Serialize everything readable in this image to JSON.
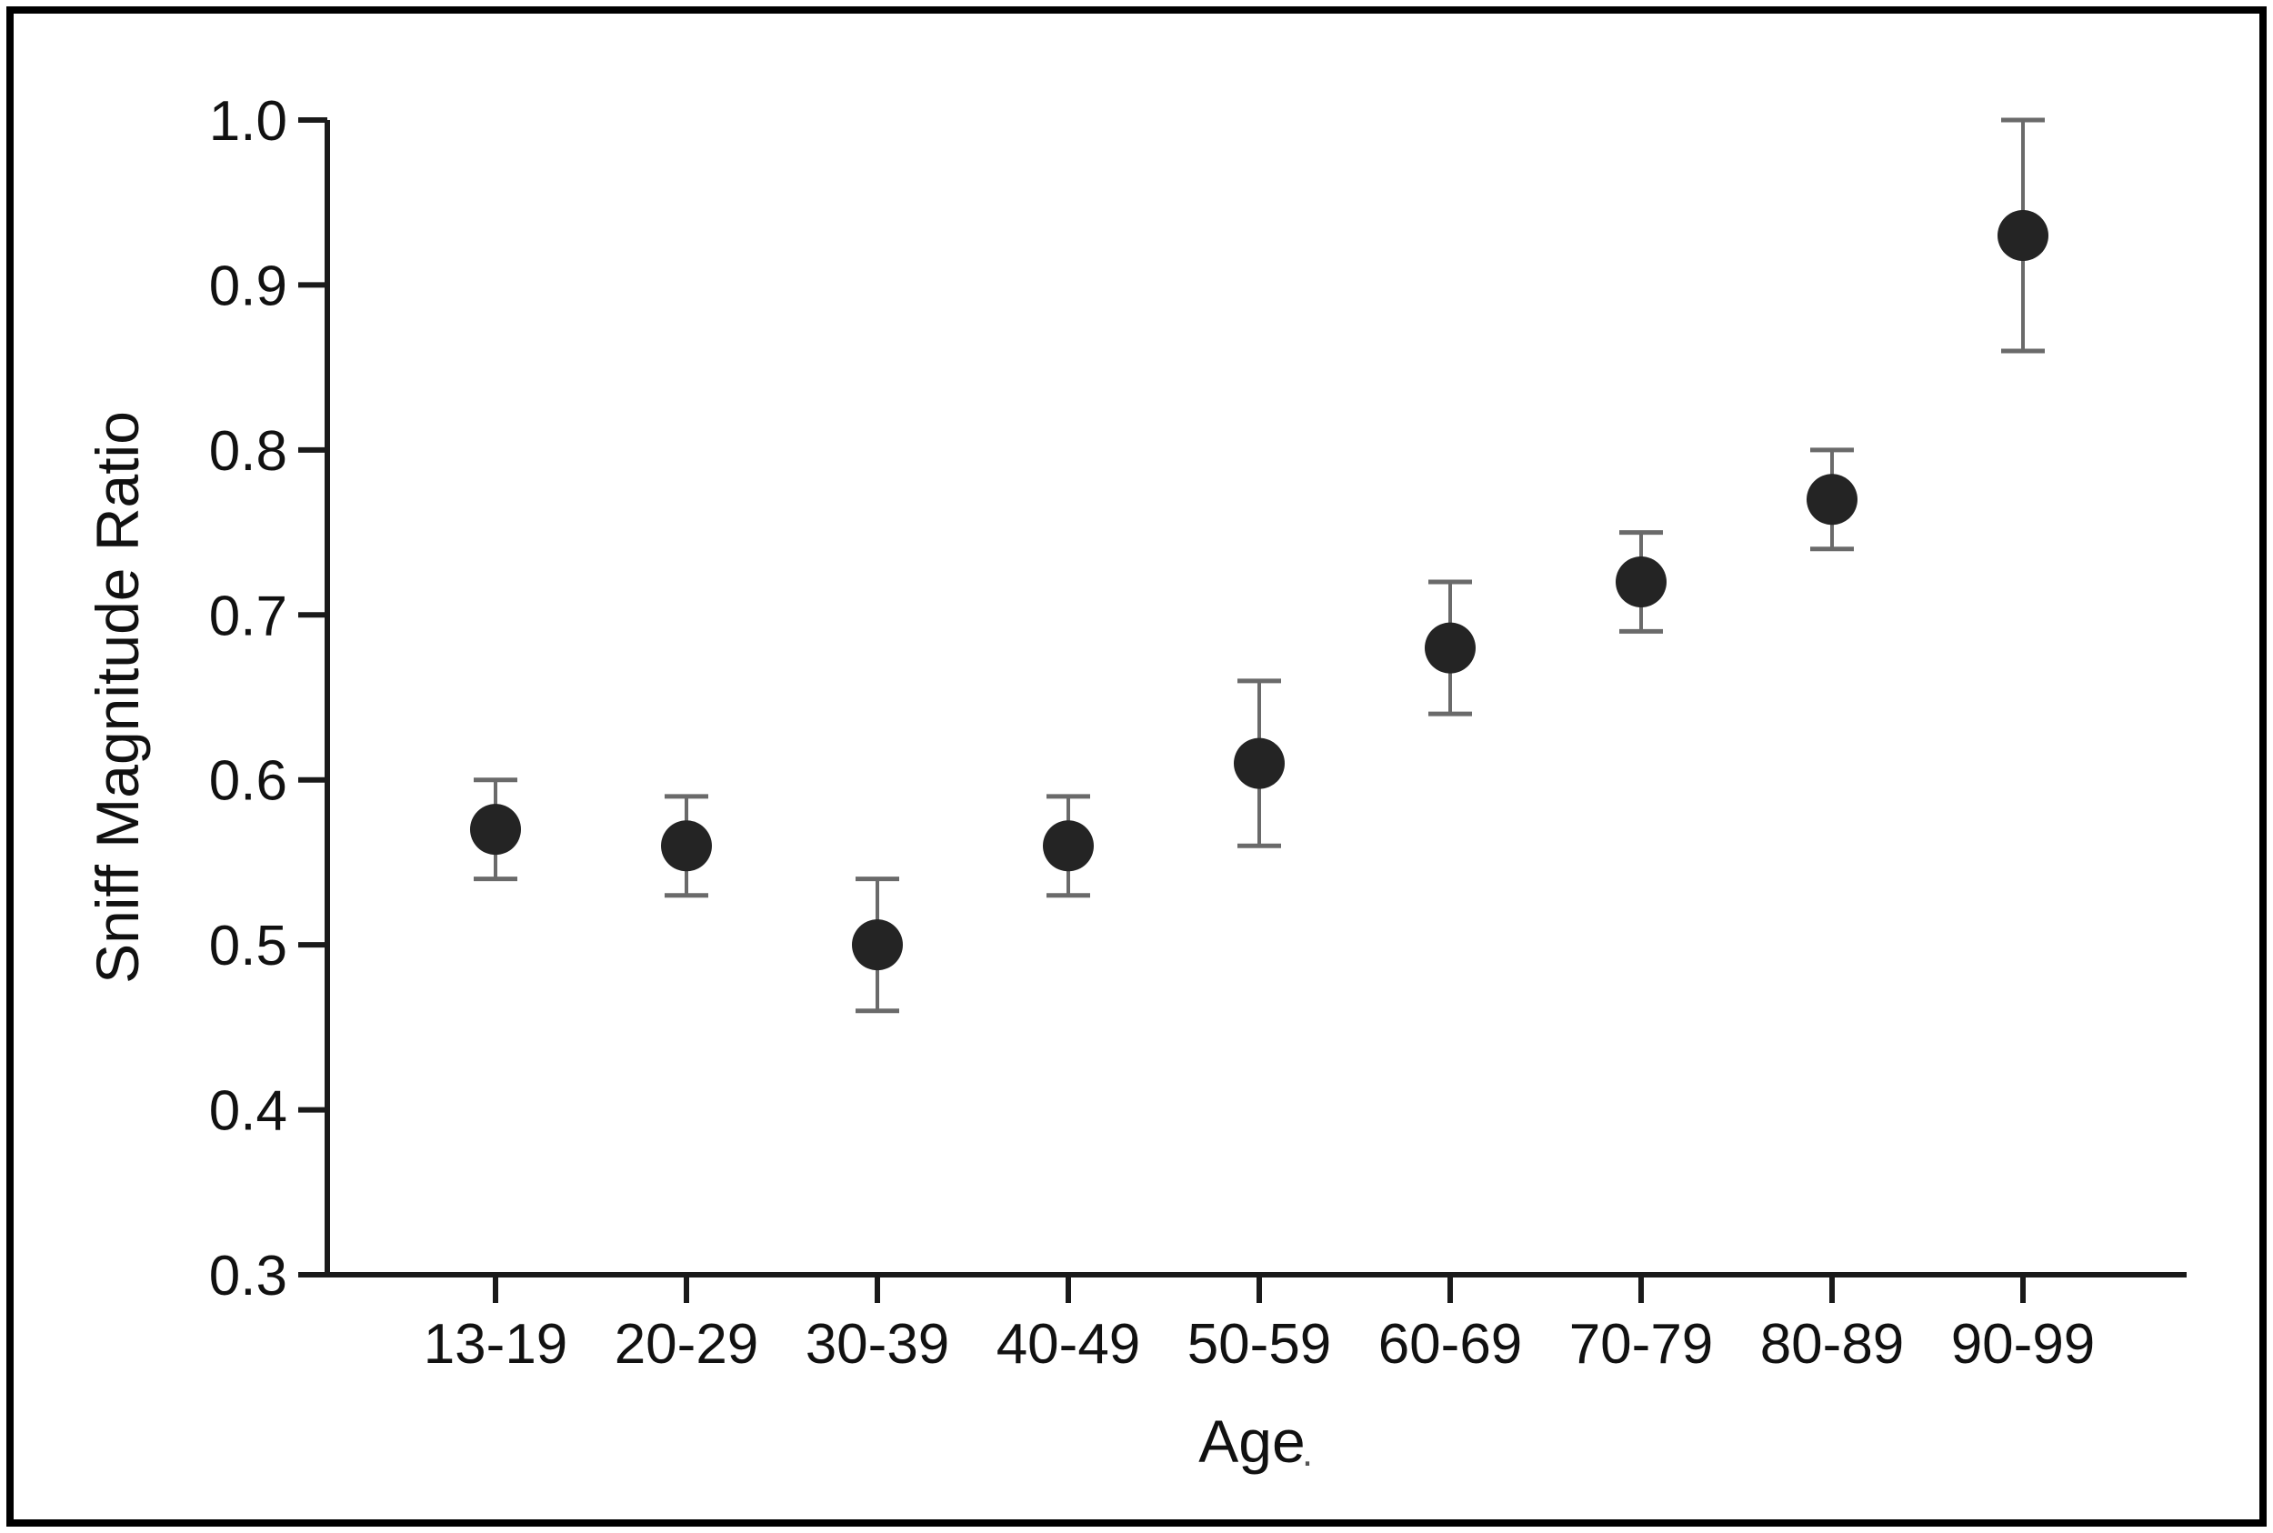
{
  "figure": {
    "background_color": "#ffffff",
    "border_color": "#000000",
    "text_color": "#111111",
    "axis_color": "#1a1a1a",
    "marker_color": "#242424",
    "error_bar_color": "#6a6a6a"
  },
  "chart_data": {
    "type": "scatter",
    "title": "",
    "xlabel": "Age",
    "ylabel": "Sniff Magnitude Ratio",
    "xlabel_artifact_dot": ".",
    "categories": [
      "13-19",
      "20-29",
      "30-39",
      "40-49",
      "50-59",
      "60-69",
      "70-79",
      "80-89",
      "90-99"
    ],
    "series": [
      {
        "values": [
          0.57,
          0.56,
          0.5,
          0.56,
          0.61,
          0.68,
          0.72,
          0.77,
          0.93
        ],
        "error_high": [
          0.6,
          0.59,
          0.54,
          0.59,
          0.66,
          0.72,
          0.75,
          0.8,
          1.0
        ],
        "error_low": [
          0.54,
          0.53,
          0.46,
          0.53,
          0.56,
          0.64,
          0.69,
          0.74,
          0.86
        ]
      }
    ],
    "ylim": [
      0.3,
      1.0
    ],
    "ytick_labels": [
      "1.0",
      "0.9",
      "0.8",
      "0.7",
      "0.6",
      "0.5",
      "0.4",
      "0.3"
    ],
    "xtick_labels": [
      "13-19",
      "20-29",
      "30-39",
      "40-49",
      "50-59",
      "60-69",
      "70-79",
      "80-89",
      "90-99"
    ],
    "grid": false,
    "legend": "none",
    "marker_shape": "circle",
    "error_bars": true
  }
}
